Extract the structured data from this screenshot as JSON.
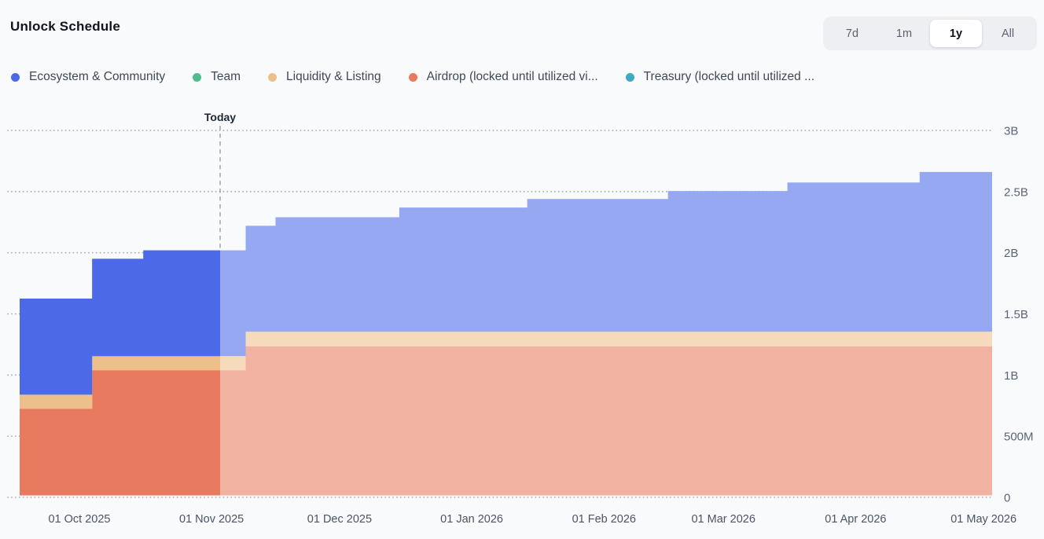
{
  "header": {
    "title": "Unlock Schedule"
  },
  "range_selector": {
    "options": [
      {
        "id": "7d",
        "label": "7d",
        "active": false
      },
      {
        "id": "1m",
        "label": "1m",
        "active": false
      },
      {
        "id": "1y",
        "label": "1y",
        "active": true
      },
      {
        "id": "all",
        "label": "All",
        "active": false
      }
    ]
  },
  "chart_data": {
    "type": "area",
    "variant": "stacked-step-area",
    "title": "Unlock Schedule",
    "grid": "dotted-horizontal",
    "legend_position": "top-left",
    "y_axis_side": "right",
    "value_unit": "tokens, values in millions",
    "ylim_millions": [
      0,
      3000
    ],
    "y_ticks": [
      {
        "label": "0",
        "value_millions": 0
      },
      {
        "label": "500M",
        "value_millions": 500
      },
      {
        "label": "1B",
        "value_millions": 1000
      },
      {
        "label": "1.5B",
        "value_millions": 1500
      },
      {
        "label": "2B",
        "value_millions": 2000
      },
      {
        "label": "2.5B",
        "value_millions": 2500
      },
      {
        "label": "3B",
        "value_millions": 3000
      }
    ],
    "domain_days": [
      0,
      228
    ],
    "x_ticks": [
      {
        "label": "01 Oct 2025",
        "day": 14
      },
      {
        "label": "01 Nov 2025",
        "day": 45
      },
      {
        "label": "01 Dec 2025",
        "day": 75
      },
      {
        "label": "01 Jan 2026",
        "day": 106
      },
      {
        "label": "01 Feb 2026",
        "day": 137
      },
      {
        "label": "01 Mar 2026",
        "day": 165
      },
      {
        "label": "01 Apr 2026",
        "day": 196
      },
      {
        "label": "01 May 2026",
        "day": 226
      }
    ],
    "today": {
      "label": "Today",
      "day": 47
    },
    "series": [
      {
        "key": "ecosystem",
        "name": "Ecosystem & Community",
        "color": "#4c69e8"
      },
      {
        "key": "team",
        "name": "Team",
        "color": "#4dbe8b"
      },
      {
        "key": "liquidity",
        "name": "Liquidity & Listing",
        "color": "#edbf8b"
      },
      {
        "key": "airdrop",
        "name": "Airdrop (locked until utilized vi...",
        "color": "#e87a5f"
      },
      {
        "key": "treasury",
        "name": "Treasury (locked until utilized ...",
        "color": "#42a9c5"
      }
    ],
    "stack_order": [
      "airdrop",
      "liquidity",
      "ecosystem",
      "team",
      "treasury"
    ],
    "breakpoints_millions": [
      {
        "day": 0,
        "ecosystem": 785,
        "team": 0,
        "liquidity": 115,
        "airdrop": 725,
        "treasury": 0,
        "total": 1625
      },
      {
        "day": 17,
        "ecosystem": 795,
        "team": 0,
        "liquidity": 115,
        "airdrop": 1040,
        "treasury": 0,
        "total": 1950
      },
      {
        "day": 29,
        "ecosystem": 865,
        "team": 0,
        "liquidity": 115,
        "airdrop": 1040,
        "treasury": 0,
        "total": 2020
      },
      {
        "day": 53,
        "ecosystem": 865,
        "team": 0,
        "liquidity": 120,
        "airdrop": 1235,
        "treasury": 0,
        "total": 2220
      },
      {
        "day": 60,
        "ecosystem": 935,
        "team": 0,
        "liquidity": 120,
        "airdrop": 1235,
        "treasury": 0,
        "total": 2290
      },
      {
        "day": 89,
        "ecosystem": 1015,
        "team": 0,
        "liquidity": 120,
        "airdrop": 1235,
        "treasury": 0,
        "total": 2370
      },
      {
        "day": 119,
        "ecosystem": 1085,
        "team": 0,
        "liquidity": 120,
        "airdrop": 1235,
        "treasury": 0,
        "total": 2440
      },
      {
        "day": 152,
        "ecosystem": 1150,
        "team": 0,
        "liquidity": 120,
        "airdrop": 1235,
        "treasury": 0,
        "total": 2505
      },
      {
        "day": 180,
        "ecosystem": 1220,
        "team": 0,
        "liquidity": 120,
        "airdrop": 1235,
        "treasury": 0,
        "total": 2575
      },
      {
        "day": 211,
        "ecosystem": 1305,
        "team": 0,
        "liquidity": 120,
        "airdrop": 1235,
        "treasury": 0,
        "total": 2660
      }
    ],
    "colors": {
      "background": "#f9fafc",
      "gridline": "#a5acb8",
      "axis_text": "#4a5464",
      "today_line": "#9aa2af",
      "today_text": "#1d2736",
      "faded_blend_white": 0.42
    }
  }
}
